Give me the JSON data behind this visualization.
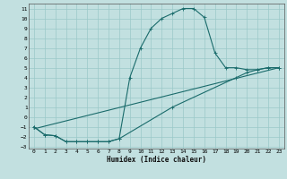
{
  "title": "",
  "xlabel": "Humidex (Indice chaleur)",
  "bg_color": "#c2e0e0",
  "grid_color": "#9ac8c8",
  "line_color": "#1a6b6b",
  "xlim": [
    -0.5,
    23.5
  ],
  "ylim": [
    -3.2,
    11.5
  ],
  "xticks": [
    0,
    1,
    2,
    3,
    4,
    5,
    6,
    7,
    8,
    9,
    10,
    11,
    12,
    13,
    14,
    15,
    16,
    17,
    18,
    19,
    20,
    21,
    22,
    23
  ],
  "yticks": [
    -3,
    -2,
    -1,
    0,
    1,
    2,
    3,
    4,
    5,
    6,
    7,
    8,
    9,
    10,
    11
  ],
  "curve1_x": [
    0,
    1,
    2,
    3,
    4,
    5,
    6,
    7,
    8,
    9,
    10,
    11,
    12,
    13,
    14,
    15,
    16,
    17,
    18,
    19,
    20,
    21,
    22,
    23
  ],
  "curve1_y": [
    -1,
    -1.8,
    -1.9,
    -2.5,
    -2.5,
    -2.5,
    -2.5,
    -2.5,
    -2.2,
    4.0,
    7.0,
    9.0,
    10.0,
    10.5,
    11.0,
    11.0,
    10.1,
    6.5,
    5.0,
    5.0,
    4.8,
    4.8,
    5.0,
    5.0
  ],
  "curve2_x": [
    0,
    1,
    2,
    3,
    4,
    5,
    6,
    7,
    8,
    13,
    19,
    20,
    21,
    22,
    23
  ],
  "curve2_y": [
    -1,
    -1.8,
    -1.9,
    -2.5,
    -2.5,
    -2.5,
    -2.5,
    -2.5,
    -2.2,
    1.0,
    4.0,
    4.5,
    4.8,
    5.0,
    5.0
  ],
  "curve3_x": [
    0,
    23
  ],
  "curve3_y": [
    -1.2,
    5.0
  ]
}
